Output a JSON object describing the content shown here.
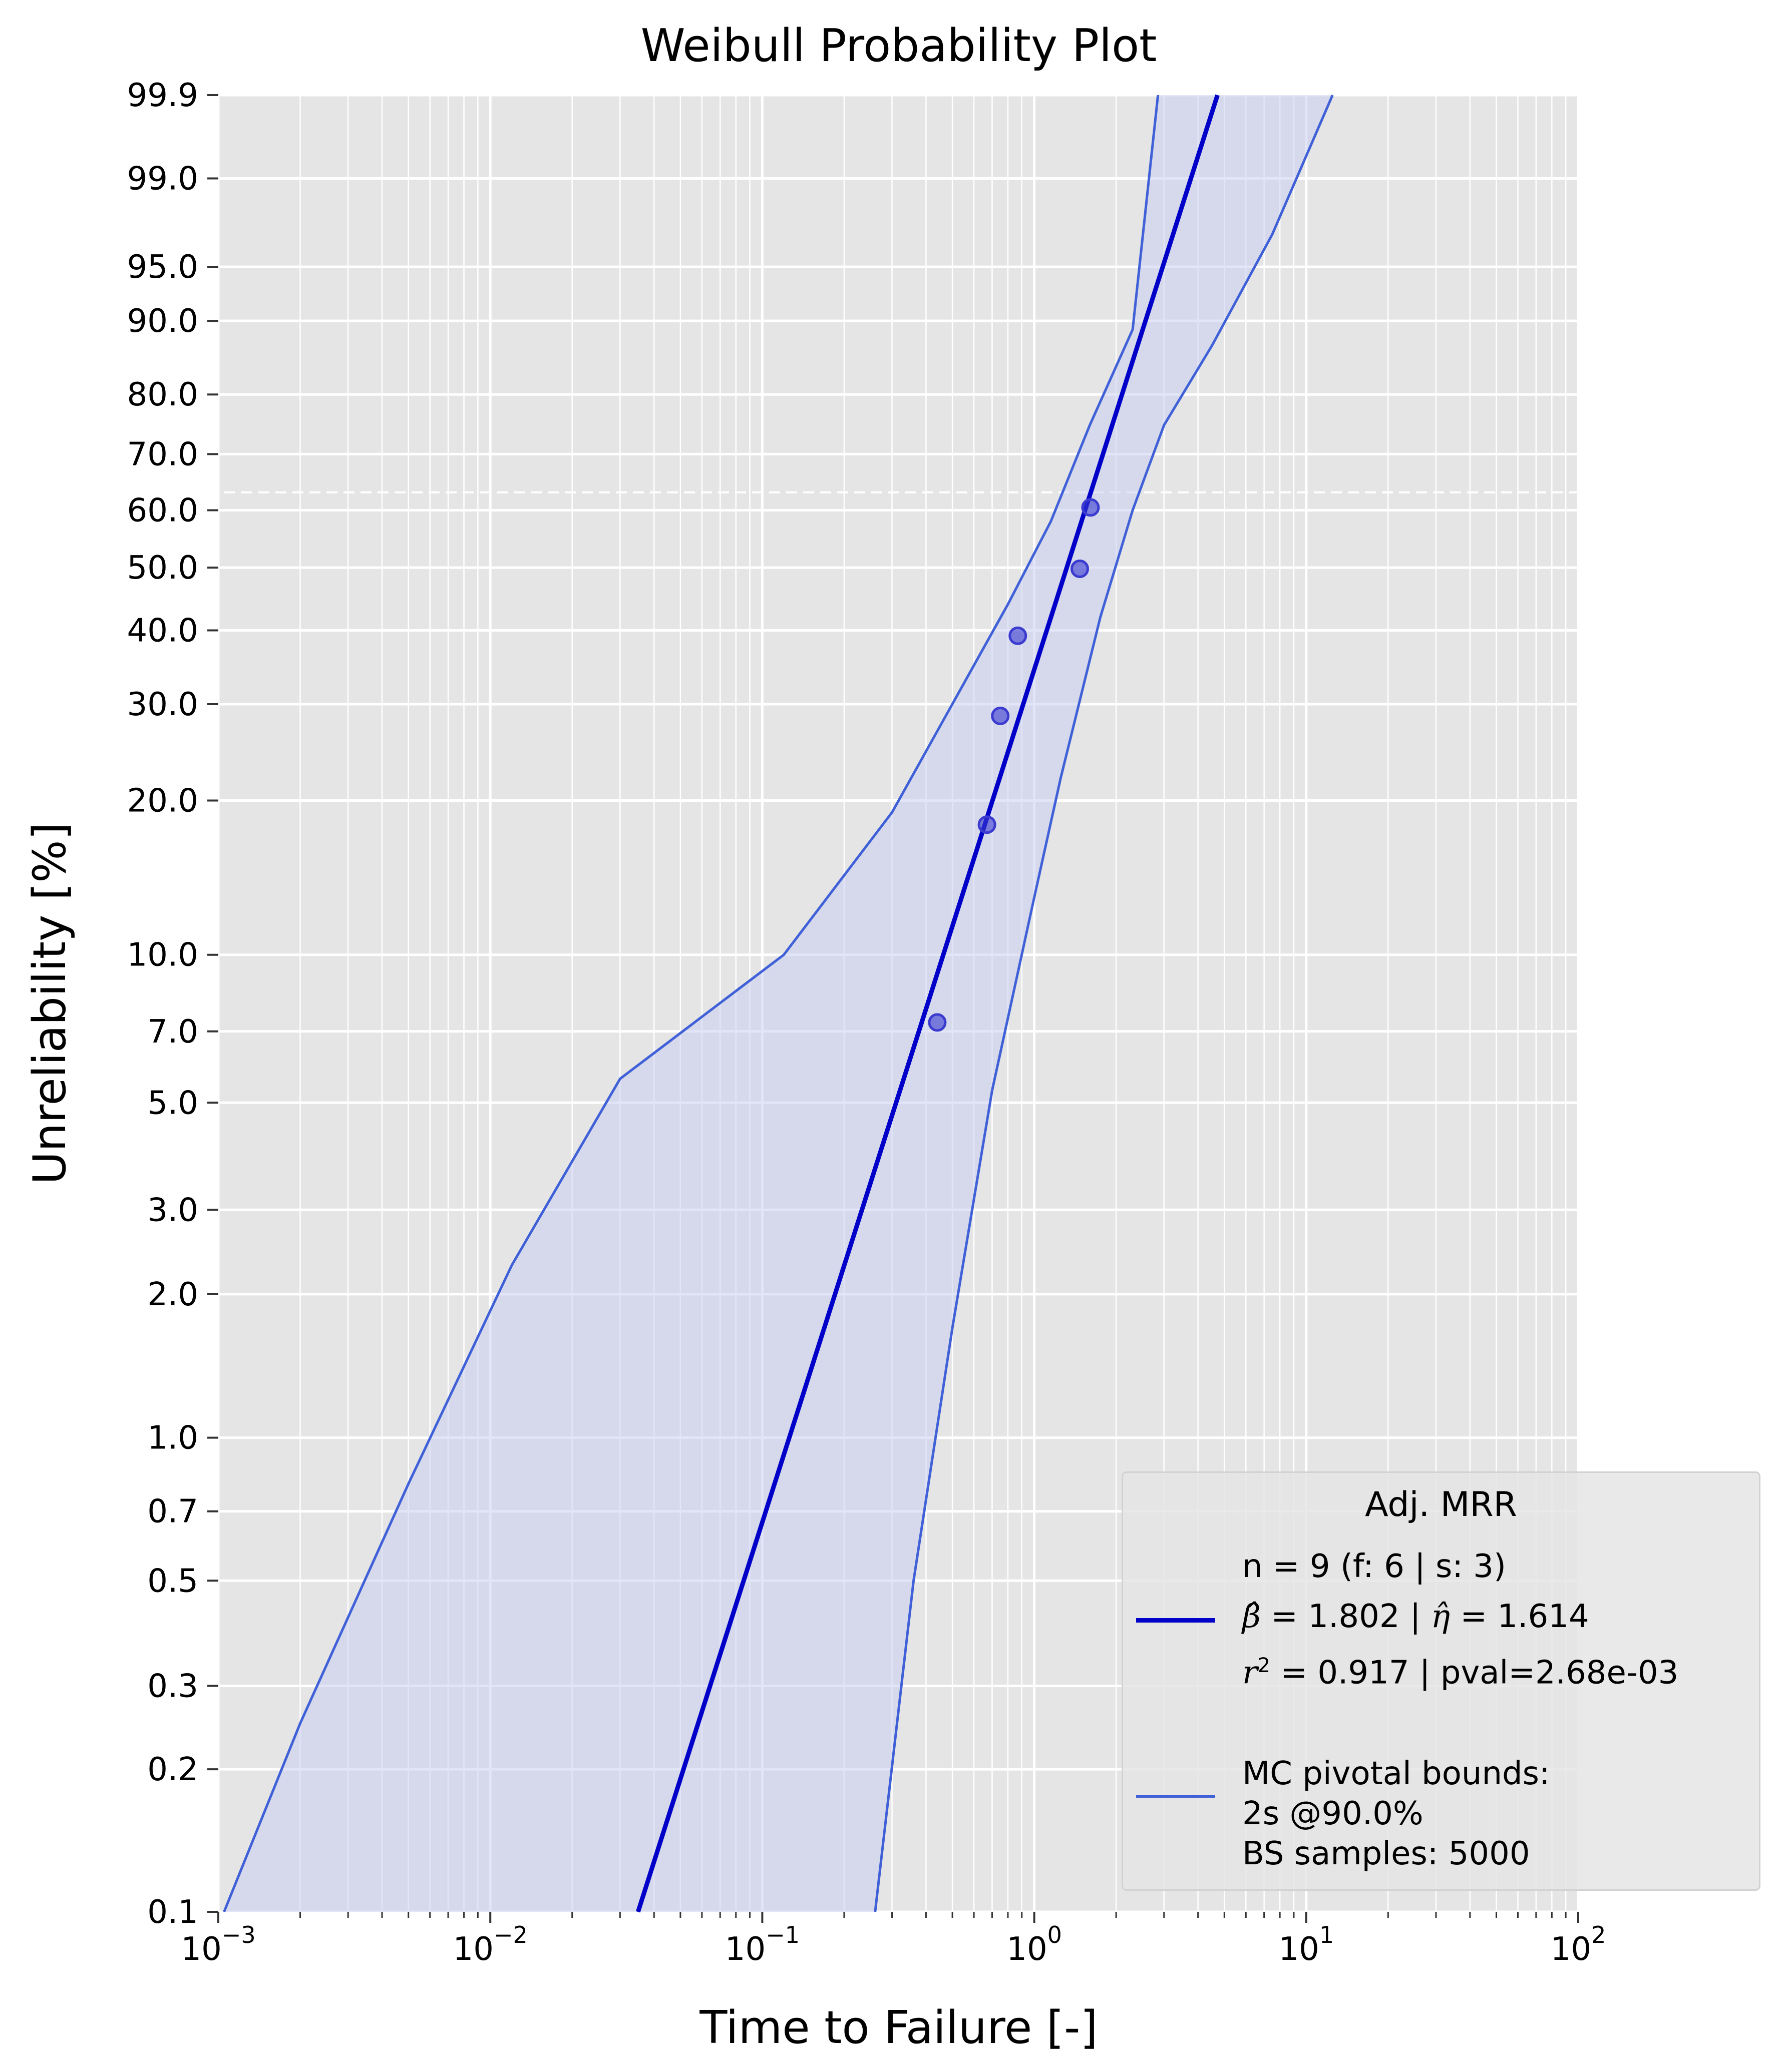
{
  "chart_data": {
    "type": "scatter",
    "title": "Weibull Probability Plot",
    "xlabel": "Time to Failure [-]",
    "ylabel": "Unreliability [%]",
    "x_scale": "log",
    "y_scale": "weibull",
    "xlim": [
      0.001,
      100
    ],
    "ylim": [
      0.1,
      99.9
    ],
    "x_ticks": [
      {
        "value": 0.001,
        "base": "10",
        "exp": "−3"
      },
      {
        "value": 0.01,
        "base": "10",
        "exp": "−2"
      },
      {
        "value": 0.1,
        "base": "10",
        "exp": "−1"
      },
      {
        "value": 1,
        "base": "10",
        "exp": "0"
      },
      {
        "value": 10,
        "base": "10",
        "exp": "1"
      },
      {
        "value": 100,
        "base": "10",
        "exp": "2"
      }
    ],
    "y_ticks": [
      {
        "value": 0.1,
        "label": "0.1"
      },
      {
        "value": 0.2,
        "label": "0.2"
      },
      {
        "value": 0.3,
        "label": "0.3"
      },
      {
        "value": 0.5,
        "label": "0.5"
      },
      {
        "value": 0.7,
        "label": "0.7"
      },
      {
        "value": 1.0,
        "label": "1.0"
      },
      {
        "value": 2.0,
        "label": "2.0"
      },
      {
        "value": 3.0,
        "label": "3.0"
      },
      {
        "value": 5.0,
        "label": "5.0"
      },
      {
        "value": 7.0,
        "label": "7.0"
      },
      {
        "value": 10.0,
        "label": "10.0"
      },
      {
        "value": 20.0,
        "label": "20.0"
      },
      {
        "value": 30.0,
        "label": "30.0"
      },
      {
        "value": 40.0,
        "label": "40.0"
      },
      {
        "value": 50.0,
        "label": "50.0"
      },
      {
        "value": 60.0,
        "label": "60.0"
      },
      {
        "value": 70.0,
        "label": "70.0"
      },
      {
        "value": 80.0,
        "label": "80.0"
      },
      {
        "value": 90.0,
        "label": "90.0"
      },
      {
        "value": 95.0,
        "label": "95.0"
      },
      {
        "value": 99.0,
        "label": "99.0"
      },
      {
        "value": 99.9,
        "label": "99.9"
      }
    ],
    "reference_line_y": 63.2,
    "grid": true,
    "data_points": [
      {
        "x": 0.44,
        "y": 7.3
      },
      {
        "x": 0.67,
        "y": 18.0
      },
      {
        "x": 0.75,
        "y": 28.6
      },
      {
        "x": 0.87,
        "y": 39.2
      },
      {
        "x": 1.47,
        "y": 49.8
      },
      {
        "x": 1.61,
        "y": 60.5
      }
    ],
    "fit": {
      "beta": 1.802,
      "eta": 1.614
    },
    "bounds": {
      "upper": [
        {
          "x": 0.00105,
          "y": 0.1
        },
        {
          "x": 0.002,
          "y": 0.25
        },
        {
          "x": 0.005,
          "y": 0.8
        },
        {
          "x": 0.012,
          "y": 2.3
        },
        {
          "x": 0.03,
          "y": 5.6
        },
        {
          "x": 0.12,
          "y": 10.0
        },
        {
          "x": 0.3,
          "y": 19.0
        },
        {
          "x": 0.6,
          "y": 35.0
        },
        {
          "x": 0.8,
          "y": 44.0
        },
        {
          "x": 1.15,
          "y": 58.0
        },
        {
          "x": 1.6,
          "y": 75.0
        },
        {
          "x": 2.3,
          "y": 89.0
        },
        {
          "x": 2.85,
          "y": 99.9
        }
      ],
      "lower": [
        {
          "x": 0.26,
          "y": 0.1
        },
        {
          "x": 0.36,
          "y": 0.5
        },
        {
          "x": 0.5,
          "y": 1.7
        },
        {
          "x": 0.7,
          "y": 5.3
        },
        {
          "x": 1.0,
          "y": 13.0
        },
        {
          "x": 1.25,
          "y": 22.0
        },
        {
          "x": 1.75,
          "y": 42.0
        },
        {
          "x": 2.3,
          "y": 60.0
        },
        {
          "x": 3.0,
          "y": 75.0
        },
        {
          "x": 4.5,
          "y": 87.0
        },
        {
          "x": 7.5,
          "y": 97.0
        },
        {
          "x": 12.5,
          "y": 99.9
        }
      ]
    },
    "legend": {
      "position": "bottom-right",
      "title": "Adj. MRR",
      "fit_line1": "n = 9 (f: 6 | s: 3)",
      "fit_beta": "1.802",
      "fit_eta": "1.614",
      "fit_r2": "0.917",
      "fit_pval": "pval=2.68e-03",
      "bounds_line1": "MC pivotal bounds:",
      "bounds_line2": "2s @90.0%",
      "bounds_line3": "BS samples: 5000"
    },
    "colors": {
      "fit_line": "#0000c8",
      "bounds": "#4060d8",
      "fill": "#c8d0f0",
      "points": "#3b3bd0",
      "background": "#e5e5e5"
    }
  }
}
